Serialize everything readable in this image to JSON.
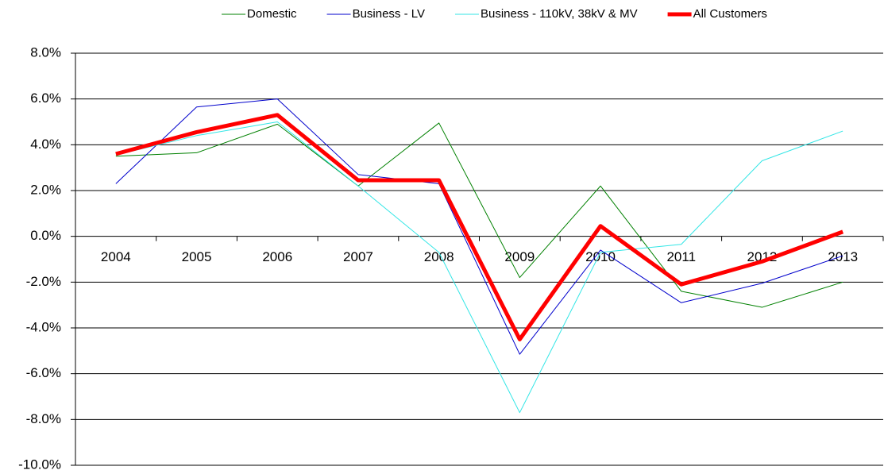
{
  "chart_data": {
    "type": "line",
    "categories": [
      "2004",
      "2005",
      "2006",
      "2007",
      "2008",
      "2009",
      "2010",
      "2011",
      "2012",
      "2013"
    ],
    "series": [
      {
        "name": "Domestic",
        "color": "#008000",
        "width": 1,
        "values": [
          3.5,
          3.65,
          4.9,
          2.2,
          4.95,
          -1.8,
          2.2,
          -2.4,
          -3.1,
          -2.0
        ]
      },
      {
        "name": "Business - LV",
        "color": "#0000cc",
        "width": 1,
        "values": [
          2.3,
          5.65,
          6.0,
          2.7,
          2.3,
          -5.15,
          -0.6,
          -2.9,
          -2.05,
          -0.85
        ]
      },
      {
        "name": "Business - 110kV, 38kV & MV",
        "color": "#33e6e6",
        "width": 1,
        "values": [
          3.55,
          4.4,
          5.0,
          2.2,
          -0.7,
          -7.7,
          -0.7,
          -0.35,
          3.3,
          4.6
        ]
      },
      {
        "name": "All Customers",
        "color": "#ff0000",
        "width": 5,
        "values": [
          3.6,
          4.55,
          5.3,
          2.45,
          2.45,
          -4.5,
          0.45,
          -2.1,
          -1.1,
          0.2
        ]
      }
    ],
    "ylim": [
      -10,
      8
    ],
    "yticks": [
      {
        "value": -10,
        "label": "-10.0%"
      },
      {
        "value": -8,
        "label": "-8.0%"
      },
      {
        "value": -6,
        "label": "-6.0%"
      },
      {
        "value": -4,
        "label": "-4.0%"
      },
      {
        "value": -2,
        "label": "-2.0%"
      },
      {
        "value": 0,
        "label": "0.0%"
      },
      {
        "value": 2,
        "label": "2.0%"
      },
      {
        "value": 4,
        "label": "4.0%"
      },
      {
        "value": 6,
        "label": "6.0%"
      },
      {
        "value": 8,
        "label": "8.0%"
      }
    ],
    "grid": true,
    "legend": "top"
  }
}
